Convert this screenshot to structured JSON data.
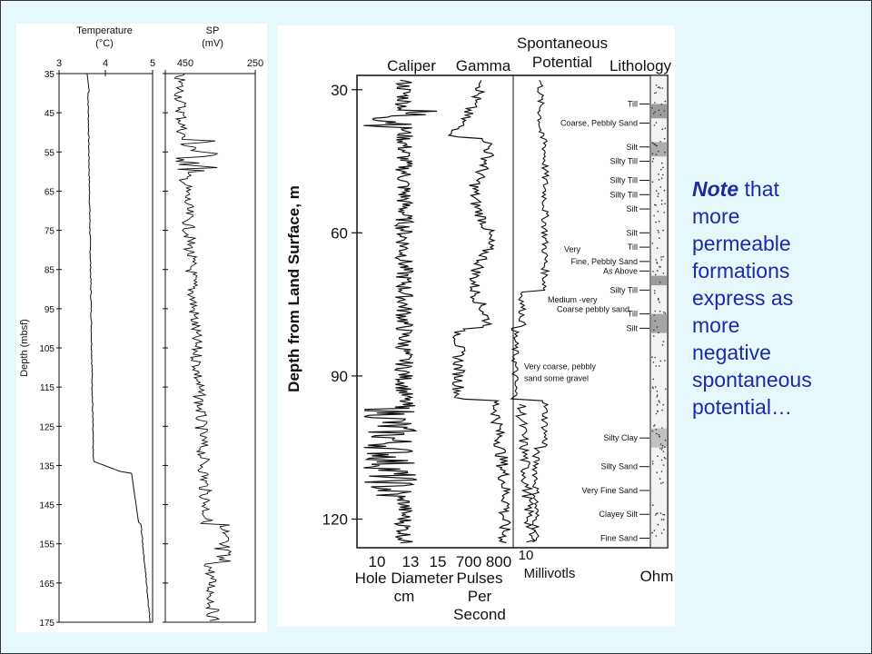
{
  "left_figure": {
    "temperature_track": {
      "title_line1": "Temperature",
      "title_line2": "(°C)",
      "ticks": [
        "3",
        "4",
        "5"
      ]
    },
    "sp_track": {
      "title_line1": "SP",
      "title_line2": "(mV)",
      "ticks": [
        "450",
        "250"
      ]
    },
    "depth_axis_label": "Depth (mbsf)",
    "depth_ticks": [
      "35",
      "45",
      "55",
      "65",
      "75",
      "85",
      "95",
      "105",
      "115",
      "125",
      "135",
      "145",
      "155",
      "165",
      "175"
    ]
  },
  "right_figure": {
    "headers": {
      "caliper": "Caliper",
      "gamma": "Gamma",
      "sp_line1": "Spontaneous",
      "sp_line2": "Potential",
      "lithology": "Lithology"
    },
    "depth_axis_label": "Depth from Land Surface, m",
    "depth_ticks": [
      "30",
      "60",
      "90",
      "120"
    ],
    "caliper_ticks": [
      "10",
      "13",
      "15"
    ],
    "gamma_ticks": [
      "700",
      "800"
    ],
    "sp_ticks": [
      "10"
    ],
    "footer": {
      "caliper_line1": "Hole Diameter",
      "caliper_line2": "cm",
      "gamma_line1": "Pulses",
      "gamma_line2": "Per",
      "gamma_line3": "Second",
      "sp_line1": "Millivotls",
      "lithology": "Ohm"
    },
    "lithology_labels": [
      {
        "text": "Till",
        "depth": 33
      },
      {
        "text": "Coarse, Pebbly Sand",
        "depth": 37
      },
      {
        "text": "Silt",
        "depth": 42
      },
      {
        "text": "Silty Till",
        "depth": 45
      },
      {
        "text": "Silty Till",
        "depth": 49
      },
      {
        "text": "Silty Till",
        "depth": 52
      },
      {
        "text": "Silt",
        "depth": 55
      },
      {
        "text": "Silt",
        "depth": 60
      },
      {
        "text": "Till",
        "depth": 63
      },
      {
        "text": "Fine, Pebbly Sand",
        "depth": 66
      },
      {
        "text": "As Above",
        "depth": 68
      },
      {
        "text": "Silty Till",
        "depth": 72
      },
      {
        "text": "Silt",
        "depth": 80
      },
      {
        "text": "Till",
        "depth": 77
      },
      {
        "text": "Silty Clay",
        "depth": 103
      },
      {
        "text": "Silty Sand",
        "depth": 109
      },
      {
        "text": "Very Fine Sand",
        "depth": 114
      },
      {
        "text": "Clayey Silt",
        "depth": 119
      },
      {
        "text": "Fine Sand",
        "depth": 124
      }
    ],
    "free_annotations": [
      {
        "text": "Very",
        "depth": 63.5
      },
      {
        "text": "Medium -very",
        "depth": 74
      },
      {
        "text": "Coarse pebbly sand",
        "depth": 76
      },
      {
        "text": "Very coarse, pebbly",
        "depth": 88
      },
      {
        "text": "sand some gravel",
        "depth": 90.5
      }
    ]
  },
  "note": {
    "emphasis": "Note",
    "line1_rest": " that",
    "lines": [
      "more",
      "permeable",
      "formations",
      "express  as",
      "more",
      "negative",
      "spontaneous",
      "potential…"
    ]
  },
  "colors": {
    "background": "#e6f8fb",
    "note_text": "#1b2aa6",
    "curve": "#111111"
  }
}
